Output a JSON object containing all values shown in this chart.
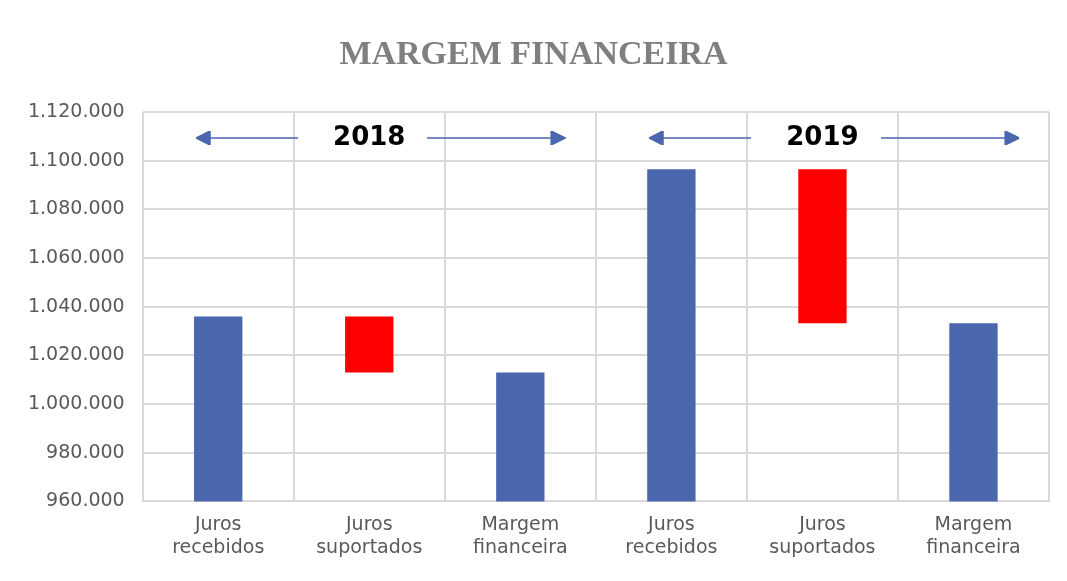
{
  "chart_data": {
    "type": "bar",
    "title": "MARGEM FINANCEIRA",
    "categories": [
      "Juros recebidos",
      "Juros suportados",
      "Margem financeira",
      "Juros recebidos",
      "Juros suportados",
      "Margem financeira"
    ],
    "values": [
      1036000,
      23000,
      1013000,
      1096500,
      63300,
      1033200
    ],
    "base": [
      null,
      1013000,
      null,
      null,
      1033200,
      null
    ],
    "colors": [
      "#4a66ac",
      "#ff0000",
      "#4a66ac",
      "#4a66ac",
      "#ff0000",
      "#4a66ac"
    ],
    "ylim": [
      960000,
      1120000
    ],
    "yticks": [
      {
        "value": 960000,
        "label": "960.000"
      },
      {
        "value": 980000,
        "label": "980.000"
      },
      {
        "value": 1000000,
        "label": "1.000.000"
      },
      {
        "value": 1020000,
        "label": "1.020.000"
      },
      {
        "value": 1040000,
        "label": "1.040.000"
      },
      {
        "value": 1060000,
        "label": "1.060.000"
      },
      {
        "value": 1080000,
        "label": "1.080.000"
      },
      {
        "value": 1100000,
        "label": "1.100.000"
      },
      {
        "value": 1120000,
        "label": "1.120.000"
      }
    ],
    "grid": true,
    "annotations": [
      "2018",
      "2019"
    ]
  }
}
